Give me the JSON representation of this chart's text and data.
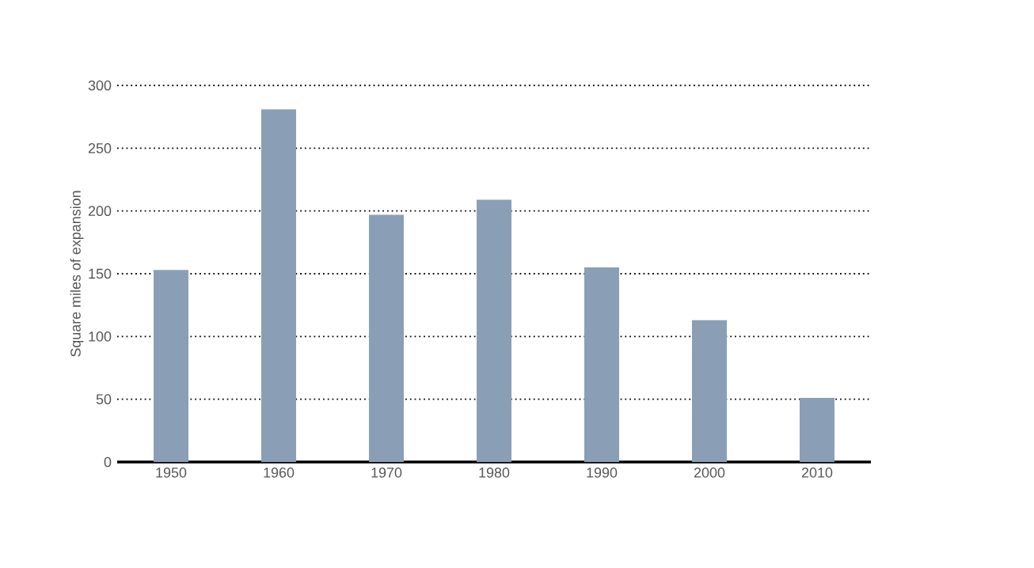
{
  "chart_data": {
    "type": "bar",
    "ylabel": "Square miles of expansion",
    "categories": [
      "1950",
      "1960",
      "1970",
      "1980",
      "1990",
      "2000",
      "2010"
    ],
    "values": [
      153,
      281,
      197,
      209,
      155,
      113,
      51
    ],
    "color": "#8a9fb5",
    "ylim": [
      0,
      300
    ],
    "yticks": [
      0,
      50,
      100,
      150,
      200,
      250,
      300
    ],
    "grid": "y"
  }
}
